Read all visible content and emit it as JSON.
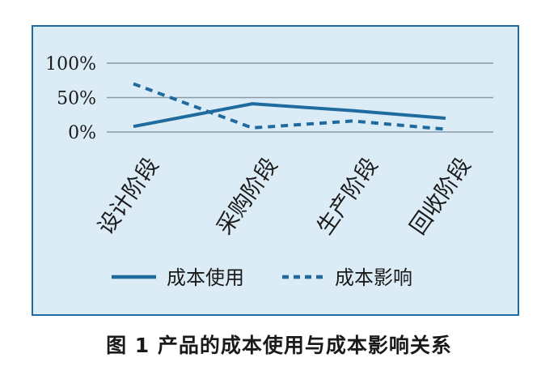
{
  "chart_data": {
    "type": "line",
    "categories": [
      "设计阶段",
      "采购阶段",
      "生产阶段",
      "回收阶段"
    ],
    "y_tick_labels": [
      "100%",
      "50%",
      "0%"
    ],
    "ylim": [
      0,
      100
    ],
    "grid": true,
    "legend_position": "bottom",
    "series": [
      {
        "name": "成本使用",
        "values": [
          8,
          41,
          31,
          20
        ],
        "style": "solid",
        "color": "#1f6a9e"
      },
      {
        "name": "成本影响",
        "values": [
          70,
          6,
          16,
          4
        ],
        "style": "dashed",
        "color": "#1f6a9e"
      }
    ]
  },
  "caption": "图 1  产品的成本使用与成本影响关系",
  "colors": {
    "panel_bg": "#dcecf6",
    "panel_border": "#1f6a9e",
    "grid": "#8a9aa6",
    "line": "#1f6a9e"
  }
}
